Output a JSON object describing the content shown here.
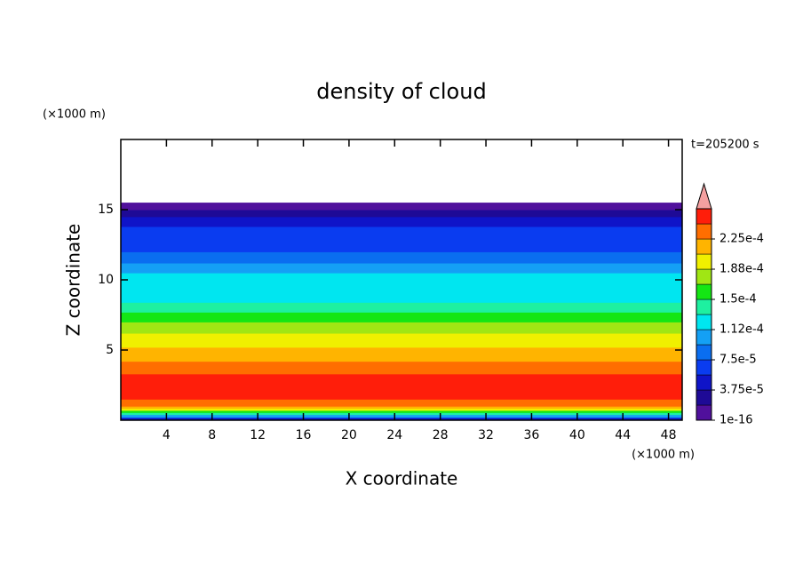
{
  "chart_data": {
    "type": "contour",
    "title": "density of cloud",
    "time_label": "t=205200 s",
    "xlabel": "X coordinate",
    "ylabel": "Z coordinate",
    "x_unit": "(×1000 m)",
    "y_unit": "(×1000 m)",
    "xlim": [
      0,
      49.2
    ],
    "ylim": [
      0,
      20
    ],
    "xticks": [
      4,
      8,
      12,
      16,
      20,
      24,
      28,
      32,
      36,
      40,
      44,
      48
    ],
    "yticks": [
      5,
      10,
      15
    ],
    "z_edges": [
      0,
      0.2,
      0.4,
      0.55,
      0.7,
      0.85,
      1.0,
      1.5,
      3.3,
      4.2,
      5.2,
      6.2,
      7.0,
      7.7,
      8.4,
      10.5,
      11.2,
      12.0,
      13.8,
      14.5,
      15.0,
      15.5
    ],
    "values": [
      4.7e-05,
      0.000103,
      0.000141,
      0.000159,
      0.000197,
      0.000216,
      0.000234,
      0.000253,
      0.000234,
      0.000216,
      0.000197,
      0.000178,
      0.000159,
      0.000141,
      0.000122,
      0.000103,
      8.4e-05,
      6.6e-05,
      4.7e-05,
      2.8e-05,
      9.4e-06
    ],
    "levels": [
      1e-16,
      1.875e-05,
      3.75e-05,
      5.625e-05,
      7.5e-05,
      9.375e-05,
      0.0001125,
      0.00013125,
      0.00015,
      0.00016875,
      0.0001875,
      0.00020625,
      0.000225,
      0.00024375,
      0.0002625
    ],
    "colors": [
      "#50109c",
      "#1e0a96",
      "#0f14c8",
      "#0a3cf0",
      "#0a6ef0",
      "#14a0f5",
      "#00e6f0",
      "#1ef0a0",
      "#14e614",
      "#a0e614",
      "#f0f000",
      "#ffb400",
      "#ff6e00",
      "#ff1e0a"
    ],
    "overflow_color": "#f4a0a0",
    "colorbar_ticks": [
      {
        "value": 1e-16,
        "label": "1e-16"
      },
      {
        "value": 3.75e-05,
        "label": "3.75e-5"
      },
      {
        "value": 7.5e-05,
        "label": "7.5e-5"
      },
      {
        "value": 0.0001125,
        "label": "1.12e-4"
      },
      {
        "value": 0.00015,
        "label": "1.5e-4"
      },
      {
        "value": 0.0001875,
        "label": "1.88e-4"
      },
      {
        "value": 0.000225,
        "label": "2.25e-4"
      }
    ]
  }
}
